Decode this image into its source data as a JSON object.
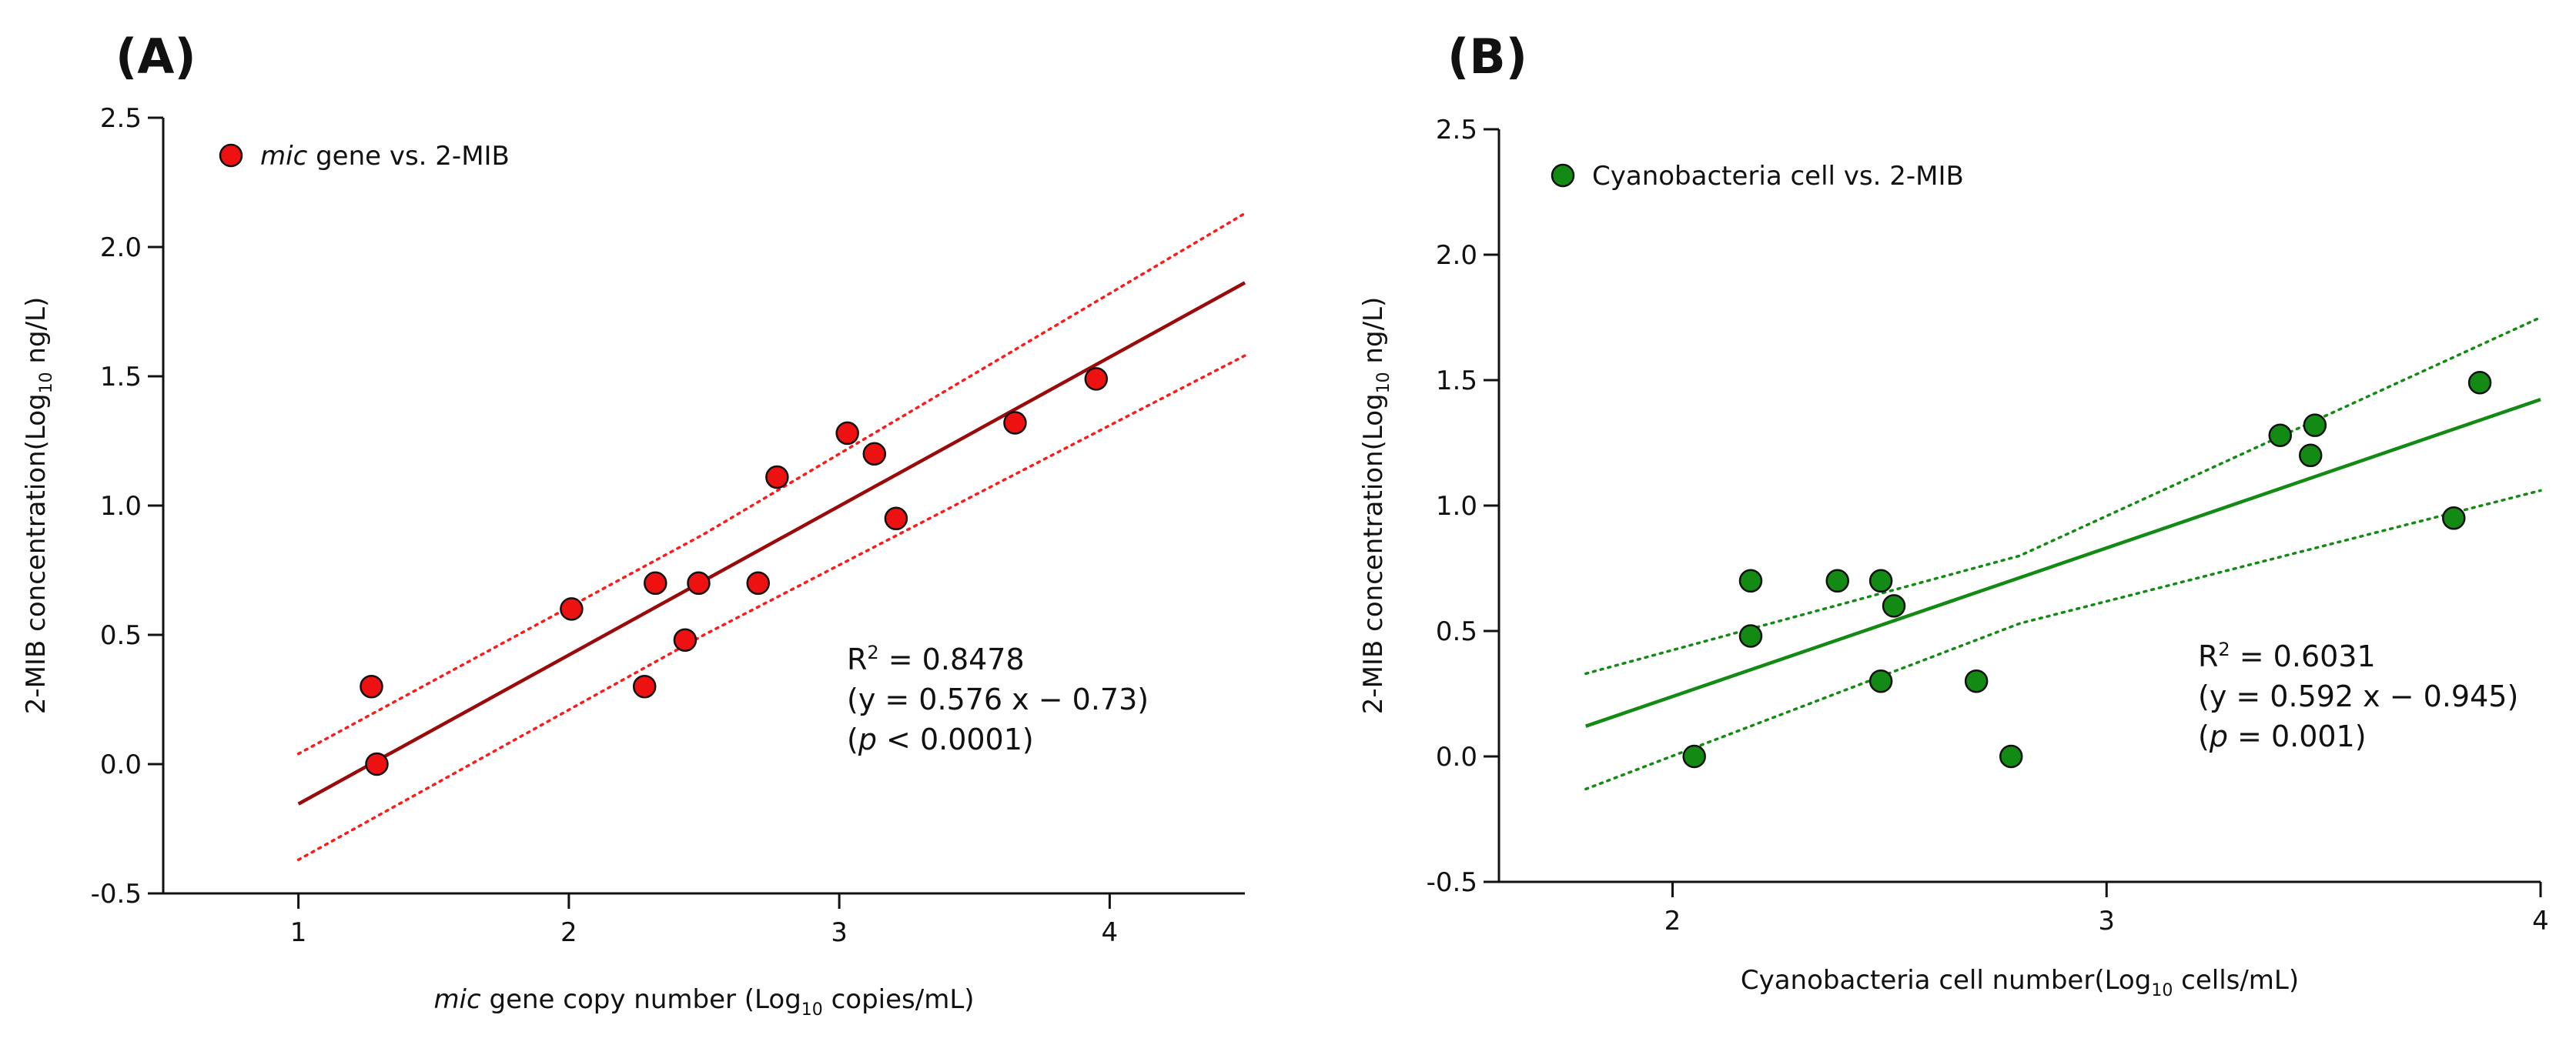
{
  "chart_data": [
    {
      "type": "scatter",
      "panel_label": "(A)",
      "legend": {
        "marker_italic": "mic",
        "rest": " gene vs. 2-MIB",
        "placement": "top-left"
      },
      "xlabel": {
        "italic": "mic",
        "text": " gene copy number (Log",
        "sub": "10",
        "after": " copies/mL)"
      },
      "ylabel": {
        "text": "2-MIB concentration(Log",
        "sub": "10",
        "after": " ng/L)"
      },
      "xlim": [
        0.5,
        4.5
      ],
      "ylim": [
        -0.5,
        2.5
      ],
      "xticks": [
        1,
        2,
        3,
        4
      ],
      "yticks": [
        -0.5,
        0.0,
        0.5,
        1.0,
        1.5,
        2.0,
        2.5
      ],
      "xtick_labels": [
        "1",
        "2",
        "3",
        "4"
      ],
      "ytick_labels": [
        "-0.5",
        "0.0",
        "0.5",
        "1.0",
        "1.5",
        "2.0",
        "2.5"
      ],
      "points": [
        {
          "x": 1.27,
          "y": 0.3
        },
        {
          "x": 1.29,
          "y": 0.0
        },
        {
          "x": 2.01,
          "y": 0.6
        },
        {
          "x": 2.28,
          "y": 0.3
        },
        {
          "x": 2.32,
          "y": 0.7
        },
        {
          "x": 2.43,
          "y": 0.48
        },
        {
          "x": 2.48,
          "y": 0.7
        },
        {
          "x": 2.7,
          "y": 0.7
        },
        {
          "x": 2.77,
          "y": 1.11
        },
        {
          "x": 3.03,
          "y": 1.28
        },
        {
          "x": 3.13,
          "y": 1.2
        },
        {
          "x": 3.21,
          "y": 0.95
        },
        {
          "x": 3.65,
          "y": 1.32
        },
        {
          "x": 3.95,
          "y": 1.49
        }
      ],
      "regression": {
        "slope": 0.576,
        "intercept": -0.73,
        "x_range": [
          1,
          4.5
        ]
      },
      "confidence_band": {
        "upper": [
          [
            1,
            0.04
          ],
          [
            2.5,
            0.89
          ],
          [
            4.5,
            2.13
          ]
        ],
        "lower": [
          [
            1,
            -0.37
          ],
          [
            2.5,
            0.5
          ],
          [
            4.5,
            1.58
          ]
        ]
      },
      "marker_color": "#ee1111",
      "marker_edge": "#111111",
      "line_color": "#9b0a0a",
      "band_color": "#ff1a1a",
      "stats": {
        "r2_label": "R",
        "r2_sup": "2",
        "r2_value": " =  0.8478",
        "equation": "(y  =  0.576 x − 0.73)",
        "p_open": "(",
        "p_symbol": "p",
        "p_rest": "  <  0.0001)"
      }
    },
    {
      "type": "scatter",
      "panel_label": "(B)",
      "legend": {
        "marker_italic": "",
        "rest": "Cyanobacteria cell vs. 2-MIB",
        "placement": "top-left"
      },
      "xlabel": {
        "italic": "",
        "text": "Cyanobacteria cell number(Log",
        "sub": "10",
        "after": " cells/mL)"
      },
      "ylabel": {
        "text": "2-MIB concentration(Log",
        "sub": "10",
        "after": " ng/L)"
      },
      "xlim": [
        1.6,
        4.0
      ],
      "ylim": [
        -0.5,
        2.5
      ],
      "xticks": [
        2,
        3,
        4
      ],
      "yticks": [
        -0.5,
        0.0,
        0.5,
        1.0,
        1.5,
        2.0,
        2.5
      ],
      "xtick_labels": [
        "2",
        "3",
        "4"
      ],
      "ytick_labels": [
        "-0.5",
        "0.0",
        "0.5",
        "1.0",
        "1.5",
        "2.0",
        "2.5"
      ],
      "points": [
        {
          "x": 2.05,
          "y": 0.0
        },
        {
          "x": 2.18,
          "y": 0.7
        },
        {
          "x": 2.18,
          "y": 0.48
        },
        {
          "x": 2.38,
          "y": 0.7
        },
        {
          "x": 2.48,
          "y": 0.7
        },
        {
          "x": 2.48,
          "y": 0.3
        },
        {
          "x": 2.51,
          "y": 0.6
        },
        {
          "x": 2.7,
          "y": 0.3
        },
        {
          "x": 2.78,
          "y": 0.0
        },
        {
          "x": 3.4,
          "y": 1.28
        },
        {
          "x": 3.47,
          "y": 1.2
        },
        {
          "x": 3.48,
          "y": 1.32
        },
        {
          "x": 3.8,
          "y": 0.95
        },
        {
          "x": 3.86,
          "y": 1.49
        }
      ],
      "regression": {
        "slope": 0.592,
        "intercept": -0.945,
        "x_range": [
          1.8,
          4.0
        ]
      },
      "confidence_band": {
        "upper": [
          [
            1.8,
            0.33
          ],
          [
            2.8,
            0.8
          ],
          [
            4.0,
            1.75
          ]
        ],
        "lower": [
          [
            1.8,
            -0.13
          ],
          [
            2.8,
            0.53
          ],
          [
            4.0,
            1.06
          ]
        ]
      },
      "marker_color": "#138a13",
      "marker_edge": "#111111",
      "line_color": "#138a13",
      "band_color": "#138a13",
      "stats": {
        "r2_label": "R",
        "r2_sup": "2",
        "r2_value": " =  0.6031",
        "equation": "(y  =  0.592 x − 0.945)",
        "p_open": "(",
        "p_symbol": "p",
        "p_rest": "  =  0.001)"
      }
    }
  ]
}
